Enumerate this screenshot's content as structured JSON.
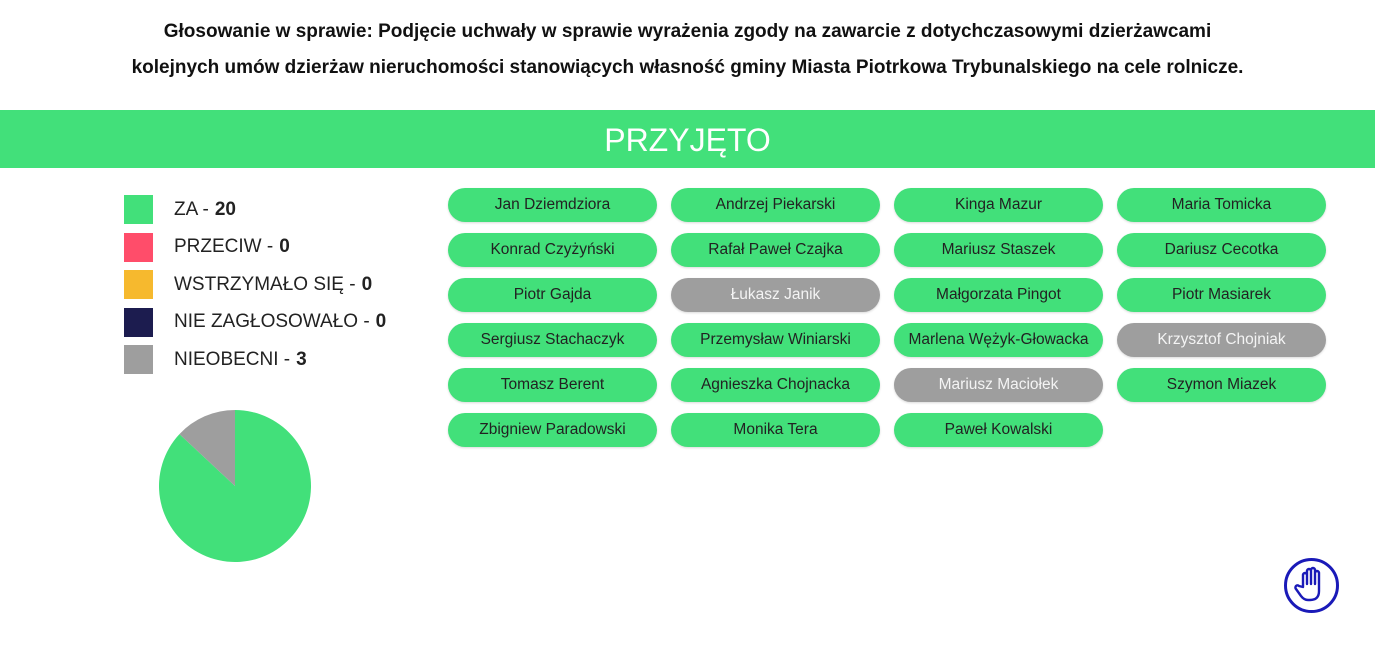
{
  "title_line1": "Głosowanie w sprawie: Podjęcie uchwały w sprawie wyrażenia zgody na zawarcie z dotychczasowymi dzierżawcami",
  "title_line2": "kolejnych umów dzierżaw nieruchomości stanowiących własność gminy Miasta Piotrkowa Trybunalskiego na cele rolnicze.",
  "result": "PRZYJĘTO",
  "legend": [
    {
      "label": "ZA -",
      "count": "20",
      "color": "#42e07a"
    },
    {
      "label": "PRZECIW -",
      "count": "0",
      "color": "#ff4d6a"
    },
    {
      "label": "WSTRZYMAŁO SIĘ -",
      "count": "0",
      "color": "#f6b92e"
    },
    {
      "label": "NIE ZAGŁOSOWAŁO -",
      "count": "0",
      "color": "#1c1c4f"
    },
    {
      "label": "NIEOBECNI -",
      "count": "3",
      "color": "#9e9e9e"
    }
  ],
  "chart_data": {
    "type": "pie",
    "categories": [
      "ZA",
      "PRZECIW",
      "WSTRZYMAŁO SIĘ",
      "NIE ZAGŁOSOWAŁO",
      "NIEOBECNI"
    ],
    "values": [
      20,
      0,
      0,
      0,
      3
    ],
    "colors": [
      "#42e07a",
      "#ff4d6a",
      "#f6b92e",
      "#1c1c4f",
      "#9e9e9e"
    ]
  },
  "voters": [
    {
      "name": "Jan Dziemdziora",
      "vote": "za"
    },
    {
      "name": "Andrzej Piekarski",
      "vote": "za"
    },
    {
      "name": "Kinga Mazur",
      "vote": "za"
    },
    {
      "name": "Maria Tomicka",
      "vote": "za"
    },
    {
      "name": "Konrad Czyżyński",
      "vote": "za"
    },
    {
      "name": "Rafał Paweł Czajka",
      "vote": "za"
    },
    {
      "name": "Mariusz Staszek",
      "vote": "za"
    },
    {
      "name": "Dariusz Cecotka",
      "vote": "za"
    },
    {
      "name": "Piotr Gajda",
      "vote": "za"
    },
    {
      "name": "Łukasz Janik",
      "vote": "nieobecny"
    },
    {
      "name": "Małgorzata Pingot",
      "vote": "za"
    },
    {
      "name": "Piotr Masiarek",
      "vote": "za"
    },
    {
      "name": "Sergiusz Stachaczyk",
      "vote": "za"
    },
    {
      "name": "Przemysław Winiarski",
      "vote": "za"
    },
    {
      "name": "Marlena Wężyk-Głowacka",
      "vote": "za"
    },
    {
      "name": "Krzysztof Chojniak",
      "vote": "nieobecny"
    },
    {
      "name": "Tomasz Berent",
      "vote": "za"
    },
    {
      "name": "Agnieszka Chojnacka",
      "vote": "za"
    },
    {
      "name": "Mariusz Maciołek",
      "vote": "nieobecny"
    },
    {
      "name": "Szymon Miazek",
      "vote": "za"
    },
    {
      "name": "Zbigniew Paradowski",
      "vote": "za"
    },
    {
      "name": "Monika Tera",
      "vote": "za"
    },
    {
      "name": "Paweł Kowalski",
      "vote": "za"
    }
  ],
  "icons": {
    "hand": "raised-hand-icon"
  }
}
